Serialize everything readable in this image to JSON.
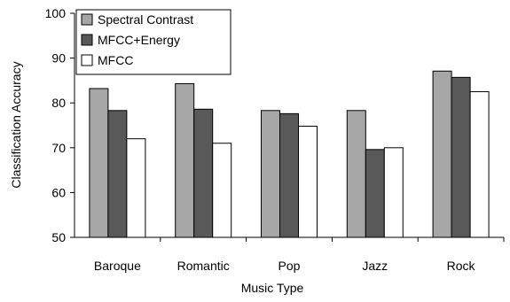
{
  "chart_data": {
    "type": "bar",
    "title": "",
    "xlabel": "Music Type",
    "ylabel": "Classification Accuracy",
    "categories": [
      "Baroque",
      "Romantic",
      "Pop",
      "Jazz",
      "Rock"
    ],
    "ylim": [
      50,
      100
    ],
    "yticks": [
      "50",
      "60",
      "70",
      "80",
      "90",
      "100"
    ],
    "grid": false,
    "legend_position": "top-left",
    "series": [
      {
        "name": "Spectral Contrast",
        "color": "#a6a6a6",
        "values": [
          83.2,
          84.3,
          78.3,
          78.3,
          87.1
        ]
      },
      {
        "name": "MFCC+Energy",
        "color": "#595959",
        "values": [
          78.3,
          78.6,
          77.6,
          69.6,
          85.7
        ]
      },
      {
        "name": "MFCC",
        "color": "#ffffff",
        "values": [
          72.0,
          71.0,
          74.8,
          70.0,
          82.5
        ]
      }
    ]
  }
}
